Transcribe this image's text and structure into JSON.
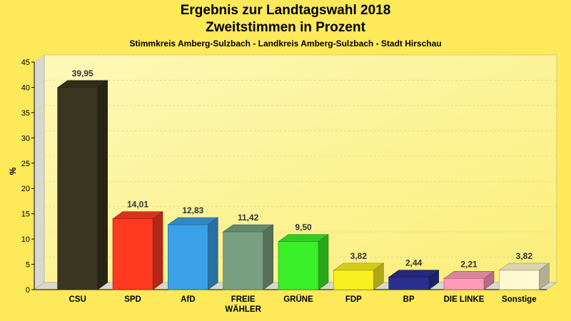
{
  "header": {
    "title_line1": "Ergebnis zur Landtagswahl 2018",
    "title_line2": "Zweitstimmen in Prozent",
    "subtitle": "Stimmkreis Amberg-Sulzbach - Landkreis Amberg-Sulzbach - Stadt Hirschau"
  },
  "chart_data": {
    "type": "bar",
    "title": "Ergebnis zur Landtagswahl 2018 Zweitstimmen in Prozent",
    "subtitle": "Stimmkreis Amberg-Sulzbach - Landkreis Amberg-Sulzbach - Stadt Hirschau",
    "ylabel": "%",
    "xlabel": "",
    "ylim": [
      0,
      45
    ],
    "yticks": [
      0,
      5,
      10,
      15,
      20,
      25,
      30,
      35,
      40,
      45
    ],
    "grid": true,
    "categories": [
      "CSU",
      "SPD",
      "AfD",
      "FREIE WÄHLER",
      "GRÜNE",
      "FDP",
      "BP",
      "DIE LINKE",
      "Sonstige"
    ],
    "category_lines": [
      [
        "CSU"
      ],
      [
        "SPD"
      ],
      [
        "AfD"
      ],
      [
        "FREIE",
        "WÄHLER"
      ],
      [
        "GRÜNE"
      ],
      [
        "FDP"
      ],
      [
        "BP"
      ],
      [
        "DIE LINKE"
      ],
      [
        "Sonstige"
      ]
    ],
    "values": [
      39.95,
      14.01,
      12.83,
      11.42,
      9.5,
      3.82,
      2.44,
      2.21,
      3.82
    ],
    "value_labels": [
      "39,95",
      "14,01",
      "12,83",
      "11,42",
      "9,50",
      "3,82",
      "2,44",
      "2,21",
      "3,82"
    ],
    "colors": [
      "#3a3520",
      "#ff3a20",
      "#3aa0e8",
      "#78a080",
      "#3af028",
      "#f8f020",
      "#2a3090",
      "#ff9ab8",
      "#fff8d0"
    ],
    "background": "#fde95a",
    "plot_background": "#fdf6a0"
  }
}
